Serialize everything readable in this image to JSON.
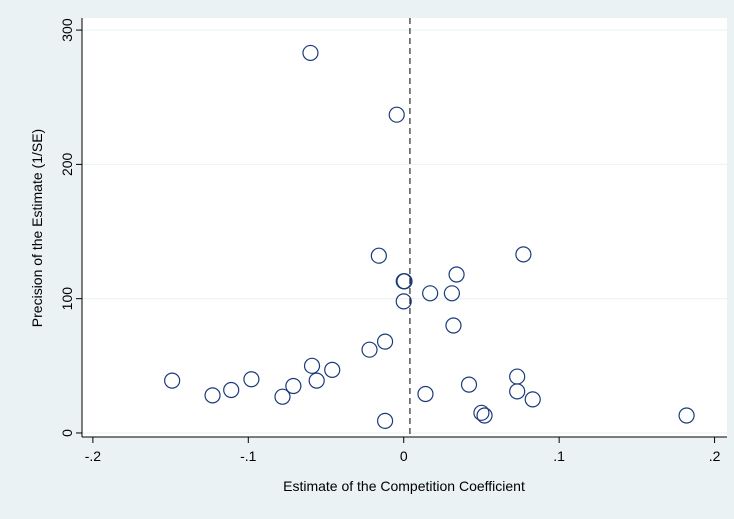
{
  "chart_data": {
    "type": "scatter",
    "x_label": "Estimate of the Competition Coefficient",
    "y_label": "Precision of the Estimate (1/SE)",
    "x": [
      -0.06,
      -0.0045,
      -0.016,
      0,
      0.0005,
      0,
      0.034,
      0.077,
      0.017,
      0.031,
      0.032,
      -0.012,
      -0.022,
      -0.046,
      -0.059,
      -0.056,
      -0.071,
      -0.078,
      -0.098,
      -0.111,
      -0.123,
      -0.149,
      -0.012,
      0.014,
      0.042,
      0.073,
      0.073,
      0.083,
      0.05,
      0.052,
      0.182
    ],
    "y": [
      283,
      237,
      132,
      113,
      113,
      98,
      118,
      133,
      104,
      104,
      80,
      68,
      62,
      47,
      50,
      39,
      35,
      27,
      40,
      32,
      28,
      39,
      9,
      29,
      36,
      42,
      31,
      25,
      15,
      13,
      13
    ],
    "color": "#1a3a7a",
    "xlim": [
      -0.207,
      0.208
    ],
    "ylim": [
      -3,
      309
    ],
    "xticks": [
      {
        "value": -0.2,
        "label": "-.2"
      },
      {
        "value": -0.1,
        "label": "-.1"
      },
      0,
      {
        "value": 0.1,
        "label": ".1"
      },
      {
        "value": 0.2,
        "label": ".2"
      }
    ],
    "yticks": [
      0,
      100,
      200,
      300
    ],
    "ref_line_x": 0.004,
    "grid": true
  }
}
